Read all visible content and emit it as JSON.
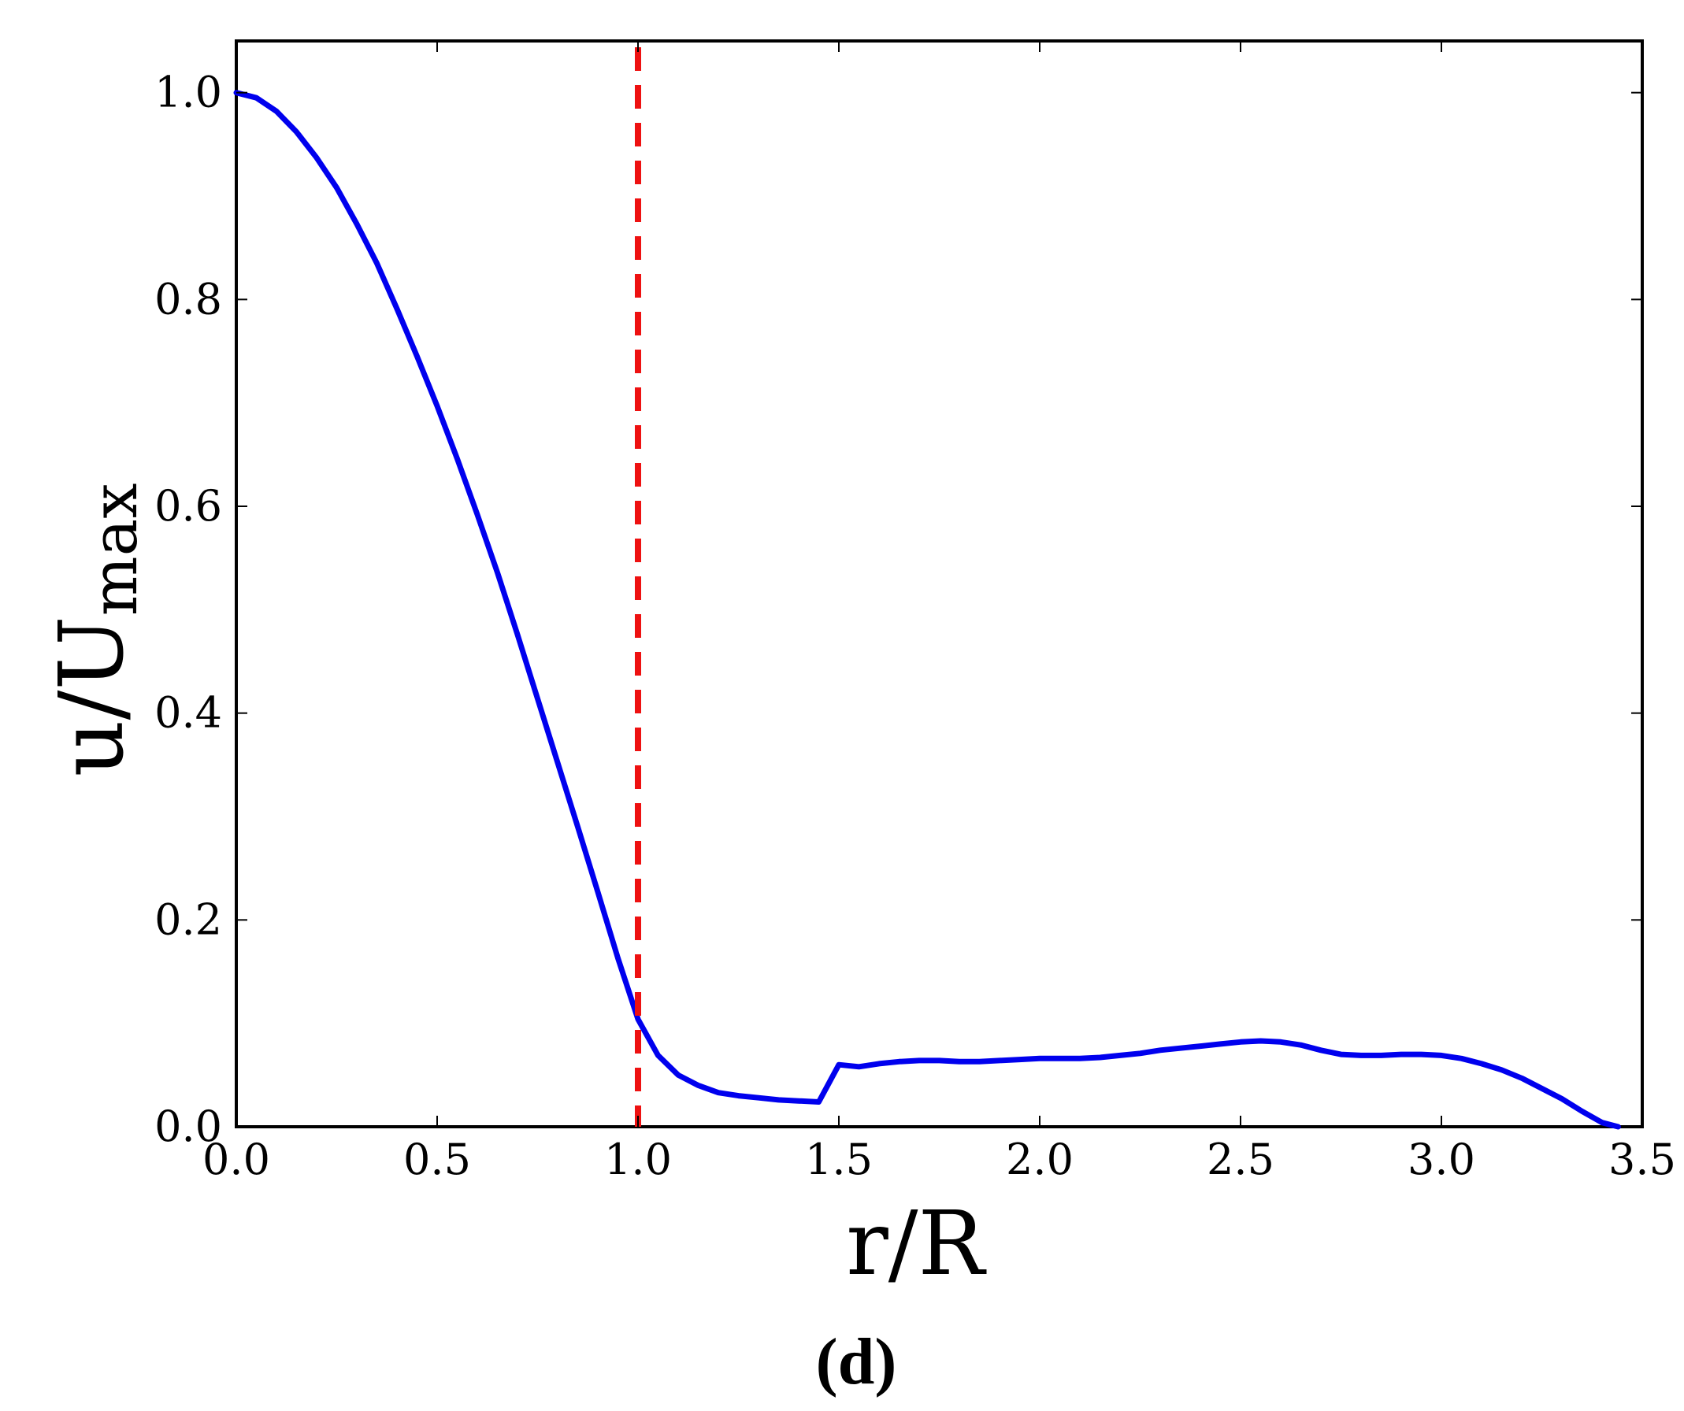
{
  "chart_data": {
    "type": "line",
    "xlabel_main": "r/R",
    "ylabel_main": "u/U",
    "ylabel_sub": "max",
    "panel_label": "(d)",
    "xlim": [
      0.0,
      3.5
    ],
    "ylim": [
      0.0,
      1.05
    ],
    "x_ticks": [
      0.0,
      0.5,
      1.0,
      1.5,
      2.0,
      2.5,
      3.0,
      3.5
    ],
    "x_tick_labels": [
      "0.0",
      "0.5",
      "1.0",
      "1.5",
      "2.0",
      "2.5",
      "3.0",
      "3.5"
    ],
    "y_ticks": [
      0.0,
      0.2,
      0.4,
      0.6,
      0.8,
      1.0
    ],
    "y_tick_labels": [
      "0.0",
      "0.2",
      "0.4",
      "0.6",
      "0.8",
      "1.0"
    ],
    "grid": false,
    "series": [
      {
        "color": "#0000ee",
        "x": [
          0.0,
          0.05,
          0.1,
          0.15,
          0.2,
          0.25,
          0.3,
          0.35,
          0.4,
          0.45,
          0.5,
          0.55,
          0.6,
          0.65,
          0.7,
          0.75,
          0.8,
          0.85,
          0.9,
          0.95,
          1.0,
          1.05,
          1.1,
          1.15,
          1.2,
          1.25,
          1.3,
          1.35,
          1.4,
          1.45,
          1.5,
          1.55,
          1.6,
          1.65,
          1.7,
          1.75,
          1.8,
          1.85,
          1.9,
          1.95,
          2.0,
          2.05,
          2.1,
          2.15,
          2.2,
          2.25,
          2.3,
          2.35,
          2.4,
          2.45,
          2.5,
          2.55,
          2.6,
          2.65,
          2.7,
          2.75,
          2.8,
          2.85,
          2.9,
          2.95,
          3.0,
          3.05,
          3.1,
          3.15,
          3.2,
          3.25,
          3.3,
          3.35,
          3.4,
          3.44
        ],
        "y": [
          1.0,
          0.995,
          0.982,
          0.962,
          0.937,
          0.908,
          0.873,
          0.835,
          0.791,
          0.745,
          0.697,
          0.646,
          0.592,
          0.536,
          0.476,
          0.414,
          0.352,
          0.29,
          0.227,
          0.163,
          0.104,
          0.069,
          0.05,
          0.04,
          0.033,
          0.03,
          0.028,
          0.026,
          0.025,
          0.024,
          0.06,
          0.058,
          0.061,
          0.063,
          0.064,
          0.064,
          0.063,
          0.063,
          0.064,
          0.065,
          0.066,
          0.066,
          0.066,
          0.067,
          0.069,
          0.071,
          0.074,
          0.076,
          0.078,
          0.08,
          0.082,
          0.083,
          0.082,
          0.079,
          0.074,
          0.07,
          0.069,
          0.069,
          0.07,
          0.07,
          0.069,
          0.066,
          0.061,
          0.055,
          0.047,
          0.037,
          0.027,
          0.015,
          0.004,
          0.0
        ]
      }
    ],
    "vline": {
      "x": 1.0,
      "color": "#ee1111",
      "style": "dashed"
    }
  }
}
